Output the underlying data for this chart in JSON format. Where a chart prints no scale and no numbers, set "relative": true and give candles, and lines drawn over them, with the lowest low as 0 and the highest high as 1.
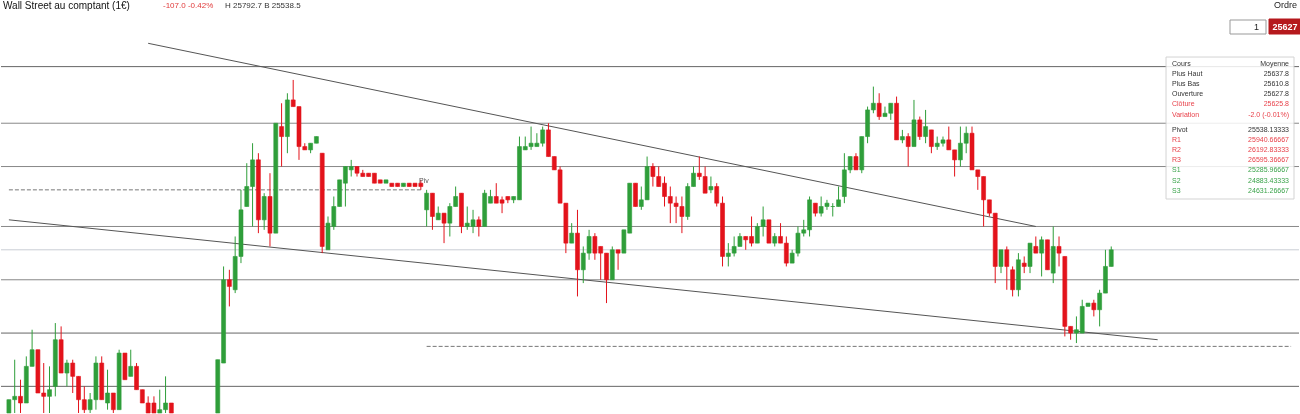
{
  "chart_data": {
    "type": "candlestick",
    "relative": true,
    "title": "Wall Street au comptant (1€)",
    "subtitle": "-107.0  -0.42%",
    "annotations": [
      "Piv",
      "H 25792.7  B 25538.5",
      "Ordre",
      "1",
      "25627",
      "Cours",
      "Moyenne",
      "Plus Haut",
      "25637.8",
      "Plus Bas",
      "25610.8",
      "Ouverture",
      "25627.8",
      "Clôture",
      "25625.8",
      "Variation",
      "-2.0 (-0.01%)",
      "Pivot",
      "25538.13333",
      "R1",
      "25940.66667",
      "R2",
      "26192.83333",
      "R3",
      "26595.36667",
      "S1",
      "25285.96667",
      "S2",
      "24883.43333",
      "S3",
      "24631.26667"
    ],
    "categories": [
      null,
      null,
      null,
      null,
      null,
      null,
      null,
      null,
      null,
      null,
      null,
      null,
      null,
      null,
      null,
      null,
      null,
      null,
      null,
      null,
      null,
      null,
      null,
      null,
      null,
      null,
      null,
      null,
      null,
      null,
      null,
      null,
      null,
      null,
      null,
      null,
      null,
      null,
      null,
      null,
      null,
      null,
      null,
      null,
      null,
      null,
      null,
      null,
      null,
      null,
      null,
      null,
      null,
      null,
      null,
      null,
      null,
      null,
      null,
      null,
      null,
      null,
      null,
      null,
      null,
      null,
      null,
      null,
      null,
      null,
      null,
      null,
      null,
      null,
      null,
      null,
      null,
      null,
      null,
      null,
      null,
      null,
      null,
      null,
      null,
      null,
      null,
      null,
      null,
      null,
      null,
      null,
      null,
      null,
      null,
      null,
      null,
      null,
      null,
      null,
      null,
      null,
      null,
      null,
      null,
      null,
      null,
      null,
      null,
      null,
      null,
      null,
      null,
      null,
      null,
      null,
      null,
      null,
      null,
      null,
      null,
      null,
      null,
      null,
      null,
      null,
      null,
      null,
      null,
      null,
      null,
      null,
      null,
      null,
      null,
      null,
      null,
      null,
      null,
      null,
      null,
      null,
      null,
      null,
      null,
      null,
      null,
      null,
      null,
      null,
      null,
      null,
      null,
      null,
      null,
      null,
      null,
      null,
      null,
      null,
      null,
      null,
      null,
      null,
      null,
      null,
      null,
      null,
      null,
      null,
      null,
      null,
      null,
      null,
      null,
      null,
      null,
      null,
      null,
      null,
      null,
      null,
      null,
      null,
      null,
      null,
      null,
      null,
      null,
      null,
      null,
      null,
      null,
      null,
      null,
      null,
      null,
      null,
      null,
      null,
      null,
      null,
      null,
      null,
      null,
      null,
      null,
      null,
      null,
      null,
      null,
      null,
      null,
      null,
      null,
      null,
      null,
      null,
      null,
      null,
      null,
      null
    ],
    "ohlc": [
      [
        0,
        0.04,
        0,
        0.04
      ],
      [
        0.04,
        0.16,
        0,
        0.05
      ],
      [
        0.05,
        0.1,
        0,
        0.03
      ],
      [
        0.03,
        0.17,
        0.03,
        0.14
      ],
      [
        0.14,
        0.25,
        0.14,
        0.19
      ],
      [
        0.19,
        0.19,
        0.06,
        0.06
      ],
      [
        0.06,
        0.15,
        0,
        0.05
      ],
      [
        0.05,
        0.14,
        0,
        0.07
      ],
      [
        0.08,
        0.27,
        0.05,
        0.22
      ],
      [
        0.22,
        0.26,
        0.12,
        0.12
      ],
      [
        0.12,
        0.16,
        0.08,
        0.15
      ],
      [
        0.15,
        0.16,
        0.06,
        0.11
      ],
      [
        0.11,
        0.11,
        0,
        0.04
      ],
      [
        0.04,
        0.08,
        0,
        0.01
      ],
      [
        0.01,
        0.06,
        0,
        0.04
      ],
      [
        0.04,
        0.17,
        0.01,
        0.15
      ],
      [
        0.15,
        0.17,
        0.04,
        0.04
      ],
      [
        0.03,
        0.13,
        0.01,
        0.06
      ],
      [
        0.06,
        0.06,
        0,
        0.01
      ],
      [
        0.01,
        0.19,
        0.01,
        0.18
      ],
      [
        0.18,
        0.18,
        0.1,
        0.1
      ],
      [
        0.11,
        0.19,
        0.11,
        0.14
      ],
      [
        0.14,
        0.15,
        0.07,
        0.07
      ],
      [
        0.07,
        0.07,
        0.03,
        0.03
      ],
      [
        0.03,
        0.05,
        0,
        0
      ],
      [
        0.03,
        0.05,
        0,
        0
      ],
      [
        0,
        0.07,
        0,
        0.01
      ],
      [
        0.01,
        0.11,
        0,
        0.03
      ],
      [
        0.03,
        0.03,
        0,
        0
      ],
      null,
      null,
      null,
      null,
      null,
      null,
      null,
      [
        0,
        0.16,
        0,
        0.16
      ],
      [
        0.15,
        0.44,
        0.15,
        0.4
      ],
      [
        0.4,
        0.43,
        0.32,
        0.38
      ],
      [
        0.37,
        0.53,
        0.36,
        0.47
      ],
      [
        0.47,
        0.67,
        0.45,
        0.61
      ],
      [
        0.62,
        0.75,
        0.62,
        0.68
      ],
      [
        0.68,
        0.81,
        0.56,
        0.76
      ],
      [
        0.76,
        0.78,
        0.54,
        0.58
      ],
      [
        0.58,
        0.66,
        0.55,
        0.65
      ],
      [
        0.65,
        0.72,
        0.5,
        0.54
      ],
      [
        0.54,
        0.87,
        0.54,
        0.87
      ],
      [
        0.86,
        0.93,
        0.74,
        0.83
      ],
      [
        0.83,
        0.96,
        0.78,
        0.94
      ],
      [
        0.94,
        1,
        0.92,
        0.92
      ],
      [
        0.92,
        0.92,
        0.76,
        0.8
      ],
      [
        0.8,
        0.81,
        0.79,
        0.79
      ],
      [
        0.79,
        0.81,
        0.78,
        0.81
      ],
      [
        0.81,
        0.83,
        0.81,
        0.83
      ],
      [
        0.78,
        0.78,
        0.48,
        0.5
      ],
      [
        0.49,
        0.59,
        0.49,
        0.57
      ],
      [
        0.56,
        0.65,
        0.55,
        0.62
      ],
      [
        0.62,
        0.7,
        0.62,
        0.7
      ],
      [
        0.69,
        0.74,
        0.62,
        0.74
      ],
      [
        0.73,
        0.76,
        0.71,
        0.74
      ],
      [
        0.74,
        0.74,
        0.71,
        0.72
      ],
      [
        0.72,
        0.73,
        0.71,
        0.71
      ],
      [
        0.72,
        0.72,
        0.71,
        0.71
      ],
      [
        0.72,
        0.72,
        0.69,
        0.69
      ],
      [
        0.7,
        0.7,
        0.69,
        0.69
      ],
      [
        0.69,
        0.7,
        0.69,
        0.7
      ],
      [
        0.69,
        0.69,
        0.68,
        0.68
      ],
      [
        0.69,
        0.69,
        0.68,
        0.68
      ],
      [
        0.68,
        0.69,
        0.68,
        0.69
      ],
      [
        0.69,
        0.69,
        0.68,
        0.68
      ],
      [
        0.69,
        0.69,
        0.68,
        0.68
      ],
      [
        0.69,
        0.7,
        0.67,
        0.68
      ],
      [
        0.61,
        0.67,
        0.56,
        0.66
      ],
      [
        0.66,
        0.66,
        0.55,
        0.59
      ],
      [
        0.58,
        0.62,
        0.58,
        0.6
      ],
      [
        0.6,
        0.6,
        0.51,
        0.57
      ],
      [
        0.57,
        0.63,
        0.53,
        0.62
      ],
      [
        0.62,
        0.68,
        0.62,
        0.65
      ],
      [
        0.66,
        0.66,
        0.54,
        0.56
      ],
      [
        0.56,
        0.62,
        0.55,
        0.57
      ],
      [
        0.56,
        0.61,
        0.54,
        0.58
      ],
      [
        0.58,
        0.59,
        0.53,
        0.56
      ],
      [
        0.56,
        0.67,
        0.56,
        0.66
      ],
      [
        0.63,
        0.67,
        0.63,
        0.65
      ],
      [
        0.65,
        0.69,
        0.63,
        0.63
      ],
      [
        0.64,
        0.65,
        0.6,
        0.63
      ],
      [
        0.65,
        0.65,
        0.63,
        0.64
      ],
      [
        0.64,
        0.65,
        0.63,
        0.65
      ],
      [
        0.64,
        0.83,
        0.64,
        0.8
      ],
      [
        0.79,
        0.83,
        0.79,
        0.8
      ],
      [
        0.8,
        0.86,
        0.79,
        0.81
      ],
      [
        0.8,
        0.84,
        0.8,
        0.81
      ],
      [
        0.81,
        0.86,
        0.8,
        0.85
      ],
      [
        0.85,
        0.87,
        0.77,
        0.77
      ],
      [
        0.77,
        0.77,
        0.73,
        0.73
      ],
      [
        0.73,
        0.74,
        0.63,
        0.63
      ],
      [
        0.63,
        0.63,
        0.48,
        0.51
      ],
      [
        0.51,
        0.57,
        0.51,
        0.54
      ],
      [
        0.54,
        0.61,
        0.35,
        0.43
      ],
      [
        0.43,
        0.5,
        0.39,
        0.48
      ],
      [
        0.48,
        0.55,
        0.46,
        0.53
      ],
      [
        0.53,
        0.54,
        0.46,
        0.48
      ],
      [
        0.5,
        0.5,
        0.4,
        0.48
      ],
      [
        0.48,
        0.48,
        0.33,
        0.4
      ],
      [
        0.4,
        0.5,
        0.4,
        0.49
      ],
      [
        0.49,
        0.49,
        0.43,
        0.48
      ],
      [
        0.48,
        0.55,
        0.48,
        0.55
      ],
      [
        0.54,
        0.69,
        0.54,
        0.69
      ],
      [
        0.69,
        0.69,
        0.62,
        0.62
      ],
      [
        0.62,
        0.68,
        0.61,
        0.64
      ],
      [
        0.64,
        0.77,
        0.64,
        0.74
      ],
      [
        0.74,
        0.75,
        0.68,
        0.71
      ],
      [
        0.71,
        0.74,
        0.68,
        0.68
      ],
      [
        0.69,
        0.71,
        0.62,
        0.65
      ],
      [
        0.65,
        0.68,
        0.57,
        0.63
      ],
      [
        0.63,
        0.65,
        0.57,
        0.62
      ],
      [
        0.62,
        0.65,
        0.54,
        0.59
      ],
      [
        0.59,
        0.69,
        0.58,
        0.68
      ],
      [
        0.68,
        0.74,
        0.68,
        0.72
      ],
      [
        0.72,
        0.77,
        0.7,
        0.71
      ],
      [
        0.71,
        0.74,
        0.66,
        0.66
      ],
      [
        0.67,
        0.71,
        0.66,
        0.68
      ],
      [
        0.68,
        0.69,
        0.62,
        0.63
      ],
      [
        0.63,
        0.65,
        0.44,
        0.47
      ],
      [
        0.47,
        0.51,
        0.44,
        0.48
      ],
      [
        0.48,
        0.53,
        0.47,
        0.5
      ],
      [
        0.5,
        0.54,
        0.5,
        0.53
      ],
      [
        0.53,
        0.53,
        0.49,
        0.52
      ],
      [
        0.53,
        0.59,
        0.5,
        0.51
      ],
      [
        0.51,
        0.57,
        0.51,
        0.56
      ],
      [
        0.56,
        0.62,
        0.53,
        0.58
      ],
      [
        0.58,
        0.58,
        0.51,
        0.51
      ],
      [
        0.51,
        0.54,
        0.5,
        0.53
      ],
      [
        0.53,
        0.57,
        0.51,
        0.51
      ],
      [
        0.51,
        0.53,
        0.44,
        0.45
      ],
      [
        0.45,
        0.49,
        0.45,
        0.48
      ],
      [
        0.48,
        0.56,
        0.47,
        0.54
      ],
      [
        0.54,
        0.58,
        0.53,
        0.55
      ],
      [
        0.55,
        0.65,
        0.53,
        0.64
      ],
      [
        0.63,
        0.63,
        0.59,
        0.6
      ],
      [
        0.6,
        0.65,
        0.59,
        0.62
      ],
      [
        0.62,
        0.64,
        0.61,
        0.63
      ],
      [
        0.62,
        0.63,
        0.59,
        0.62
      ],
      [
        0.62,
        0.68,
        0.62,
        0.64
      ],
      [
        0.65,
        0.78,
        0.63,
        0.73
      ],
      [
        0.73,
        0.77,
        0.72,
        0.77
      ],
      [
        0.77,
        0.78,
        0.73,
        0.73
      ],
      [
        0.73,
        0.83,
        0.72,
        0.83
      ],
      [
        0.83,
        0.92,
        0.81,
        0.91
      ],
      [
        0.91,
        0.98,
        0.9,
        0.93
      ],
      [
        0.93,
        0.96,
        0.88,
        0.89
      ],
      [
        0.89,
        0.92,
        0.89,
        0.9
      ],
      [
        0.9,
        0.93,
        0.88,
        0.93
      ],
      [
        0.93,
        0.95,
        0.82,
        0.82
      ],
      [
        0.82,
        0.85,
        0.81,
        0.83
      ],
      [
        0.83,
        0.84,
        0.74,
        0.8
      ],
      [
        0.8,
        0.94,
        0.8,
        0.88
      ],
      [
        0.88,
        0.89,
        0.82,
        0.83
      ],
      [
        0.83,
        0.91,
        0.81,
        0.86
      ],
      [
        0.85,
        0.85,
        0.78,
        0.8
      ],
      [
        0.8,
        0.83,
        0.79,
        0.81
      ],
      [
        0.81,
        0.83,
        0.8,
        0.82
      ],
      [
        0.82,
        0.86,
        0.79,
        0.79
      ],
      [
        0.79,
        0.79,
        0.71,
        0.76
      ],
      [
        0.76,
        0.86,
        0.74,
        0.81
      ],
      [
        0.81,
        0.86,
        0.78,
        0.84
      ],
      [
        0.84,
        0.86,
        0.73,
        0.73
      ],
      [
        0.73,
        0.73,
        0.67,
        0.71
      ],
      [
        0.71,
        0.71,
        0.56,
        0.64
      ],
      [
        0.64,
        0.64,
        0.59,
        0.6
      ],
      [
        0.6,
        0.6,
        0.39,
        0.44
      ],
      [
        0.44,
        0.49,
        0.42,
        0.49
      ],
      [
        0.49,
        0.5,
        0.37,
        0.44
      ],
      [
        0.43,
        0.44,
        0.35,
        0.37
      ],
      [
        0.37,
        0.48,
        0.35,
        0.46
      ],
      [
        0.45,
        0.47,
        0.42,
        0.44
      ],
      [
        0.44,
        0.51,
        0.42,
        0.51
      ],
      [
        0.5,
        0.53,
        0.48,
        0.48
      ],
      [
        0.48,
        0.53,
        0.41,
        0.52
      ],
      [
        0.52,
        0.52,
        0.43,
        0.43
      ],
      [
        0.42,
        0.56,
        0.39,
        0.5
      ],
      [
        0.5,
        0.53,
        0.44,
        0.48
      ],
      [
        0.47,
        0.47,
        0.23,
        0.26
      ],
      [
        0.26,
        0.26,
        0.22,
        0.24
      ],
      [
        0.24,
        0.29,
        0.21,
        0.25
      ],
      [
        0.24,
        0.34,
        0.24,
        0.32
      ],
      [
        0.32,
        0.33,
        0.32,
        0.33
      ],
      [
        0.33,
        0.34,
        0.29,
        0.31
      ],
      [
        0.31,
        0.37,
        0.26,
        0.36
      ],
      [
        0.36,
        0.49,
        0.36,
        0.44
      ],
      [
        0.44,
        0.5,
        0.44,
        0.49
      ],
      null,
      null,
      null,
      null,
      null,
      null,
      null,
      null,
      null,
      null,
      null,
      null,
      null,
      null,
      null,
      null,
      null,
      null,
      null,
      null,
      null,
      null,
      null,
      null,
      null,
      null,
      null,
      null,
      null,
      null,
      null
    ],
    "series": [
      {
        "type": "line",
        "color": "#555555",
        "line_style": "solid",
        "values": [
          null,
          null,
          null,
          null,
          null,
          null,
          null,
          null,
          null,
          null,
          null,
          null,
          null,
          null,
          null,
          null,
          null,
          null,
          null,
          null,
          null,
          null,
          null,
          null,
          1.11,
          null,
          null,
          null,
          null,
          null,
          null,
          null,
          null,
          null,
          null,
          null,
          null,
          null,
          null,
          null,
          null,
          null,
          null,
          null,
          null,
          null,
          null,
          null,
          null,
          null,
          null,
          null,
          null,
          null,
          null,
          null,
          null,
          null,
          null,
          null,
          null,
          null,
          null,
          null,
          null,
          null,
          null,
          null,
          null,
          null,
          null,
          null,
          null,
          null,
          null,
          null,
          null,
          null,
          null,
          null,
          null,
          null,
          null,
          null,
          null,
          null,
          null,
          null,
          null,
          null,
          null,
          null,
          null,
          null,
          null,
          null,
          null,
          null,
          null,
          null,
          null,
          null,
          null,
          null,
          null,
          null,
          null,
          null,
          null,
          null,
          null,
          null,
          null,
          null,
          null,
          null,
          null,
          null,
          null,
          null,
          null,
          null,
          null,
          null,
          null,
          null,
          null,
          null,
          null,
          null,
          null,
          null,
          null,
          null,
          null,
          null,
          null,
          null,
          null,
          null,
          null,
          null,
          null,
          null,
          null,
          null,
          null,
          null,
          null,
          null,
          null,
          null,
          null,
          null,
          null,
          null,
          null,
          null,
          null,
          null,
          null,
          null,
          null,
          null,
          null,
          null,
          null,
          null,
          null,
          null,
          null,
          null,
          null,
          null,
          null,
          null,
          null,
          0.56,
          null,
          null,
          null,
          null,
          null,
          null,
          null,
          null,
          null,
          null,
          null,
          null,
          null,
          null,
          null,
          null,
          null,
          null,
          null,
          null,
          null,
          null,
          null,
          null,
          null,
          null,
          null,
          null,
          null,
          null,
          null,
          null,
          null,
          null,
          null,
          null,
          null,
          null,
          null,
          null,
          null,
          null,
          null,
          null
        ]
      },
      {
        "type": "line",
        "color": "#555555",
        "line_style": "solid",
        "values": [
          0.58,
          null,
          null,
          null,
          null,
          null,
          null,
          null,
          null,
          null,
          null,
          null,
          null,
          null,
          null,
          null,
          null,
          null,
          null,
          null,
          null,
          null,
          null,
          null,
          null,
          null,
          null,
          null,
          null,
          null,
          null,
          null,
          null,
          null,
          null,
          null,
          null,
          null,
          null,
          null,
          null,
          null,
          null,
          null,
          null,
          null,
          null,
          null,
          null,
          null,
          null,
          null,
          null,
          null,
          null,
          null,
          null,
          null,
          null,
          null,
          null,
          null,
          null,
          null,
          null,
          null,
          null,
          null,
          null,
          null,
          null,
          null,
          null,
          null,
          null,
          null,
          null,
          null,
          null,
          null,
          null,
          null,
          null,
          null,
          null,
          null,
          null,
          null,
          null,
          null,
          null,
          null,
          null,
          null,
          null,
          null,
          null,
          null,
          null,
          null,
          null,
          null,
          null,
          null,
          null,
          null,
          null,
          null,
          null,
          null,
          null,
          null,
          null,
          null,
          null,
          null,
          null,
          null,
          null,
          null,
          null,
          null,
          null,
          null,
          null,
          null,
          null,
          null,
          null,
          null,
          null,
          null,
          null,
          null,
          null,
          null,
          null,
          null,
          null,
          null,
          null,
          null,
          null,
          null,
          null,
          null,
          null,
          null,
          null,
          null,
          null,
          null,
          null,
          null,
          null,
          null,
          null,
          null,
          null,
          null,
          null,
          null,
          null,
          null,
          null,
          null,
          null,
          null,
          null,
          null,
          null,
          null,
          null,
          null,
          null,
          null,
          null,
          null,
          null,
          null,
          null,
          null,
          null,
          null,
          null,
          null,
          null,
          null,
          null,
          null,
          null,
          null,
          null,
          null,
          null,
          null,
          null,
          null,
          0.22,
          null,
          null,
          null,
          null,
          null,
          null,
          null,
          null,
          null,
          null,
          null,
          null,
          null,
          null,
          null,
          null,
          null,
          null,
          null,
          null,
          null,
          null,
          null
        ]
      },
      {
        "type": "line",
        "color": "#777777",
        "line_style": "dashed",
        "values": [
          0.67,
          null,
          null,
          null,
          null,
          null,
          null,
          null,
          null,
          null,
          null,
          null,
          null,
          null,
          null,
          null,
          null,
          null,
          null,
          null,
          null,
          null,
          null,
          null,
          null,
          null,
          null,
          null,
          null,
          null,
          null,
          null,
          null,
          null,
          null,
          null,
          null,
          null,
          null,
          null,
          null,
          null,
          null,
          null,
          null,
          null,
          null,
          null,
          null,
          null,
          null,
          null,
          null,
          null,
          null,
          null,
          null,
          null,
          null,
          null,
          null,
          null,
          null,
          null,
          null,
          null,
          null,
          null,
          null,
          null,
          null,
          0.67,
          null,
          null,
          null,
          null,
          null,
          null,
          null,
          null,
          null,
          null,
          null,
          null,
          null,
          null,
          null,
          null,
          null,
          null,
          null,
          null,
          null,
          null,
          null,
          null,
          null,
          null,
          null,
          null,
          null,
          null,
          null,
          null,
          null,
          null,
          null,
          null,
          null,
          null,
          null,
          null,
          null,
          null,
          null,
          null,
          null,
          null,
          null,
          null,
          null,
          null,
          null,
          null,
          null,
          null,
          null,
          null,
          null,
          null,
          null,
          null,
          null,
          null,
          null,
          null,
          null,
          null,
          null,
          null,
          null,
          null,
          null,
          null,
          null,
          null,
          null,
          null,
          null,
          null,
          null,
          null,
          null,
          null,
          null,
          null,
          null,
          null,
          null,
          null,
          null,
          null,
          null,
          null,
          null,
          null,
          null,
          null,
          null,
          null,
          null,
          null,
          null,
          null,
          null,
          null,
          null,
          null,
          null,
          null,
          null,
          null,
          null,
          null,
          null,
          null,
          null,
          null,
          null,
          null,
          null,
          null,
          null,
          null,
          null,
          null,
          null,
          null,
          null,
          null,
          null,
          null,
          null,
          null,
          null,
          null,
          null,
          null,
          null,
          null,
          null,
          null,
          null,
          null,
          null,
          null,
          null,
          null,
          null,
          null,
          null,
          null
        ]
      },
      {
        "type": "line",
        "color": "#777777",
        "line_style": "dashed",
        "values": [
          null,
          null,
          null,
          null,
          null,
          null,
          null,
          null,
          null,
          null,
          null,
          null,
          null,
          null,
          null,
          null,
          null,
          null,
          null,
          null,
          null,
          null,
          null,
          null,
          null,
          null,
          null,
          null,
          null,
          null,
          null,
          null,
          null,
          null,
          null,
          null,
          null,
          null,
          null,
          null,
          null,
          null,
          null,
          null,
          null,
          null,
          null,
          null,
          null,
          null,
          null,
          null,
          null,
          null,
          null,
          null,
          null,
          null,
          null,
          null,
          null,
          null,
          null,
          null,
          null,
          null,
          null,
          null,
          null,
          null,
          null,
          null,
          0.2,
          null,
          null,
          null,
          null,
          null,
          null,
          null,
          null,
          null,
          null,
          null,
          null,
          null,
          null,
          null,
          null,
          null,
          null,
          null,
          null,
          null,
          null,
          null,
          null,
          null,
          null,
          null,
          null,
          null,
          null,
          null,
          null,
          null,
          null,
          null,
          null,
          null,
          null,
          null,
          null,
          null,
          null,
          null,
          null,
          null,
          null,
          null,
          null,
          null,
          null,
          null,
          null,
          null,
          null,
          null,
          null,
          null,
          null,
          null,
          null,
          null,
          null,
          null,
          null,
          null,
          null,
          null,
          null,
          null,
          null,
          null,
          null,
          null,
          null,
          null,
          null,
          null,
          null,
          null,
          null,
          null,
          null,
          null,
          null,
          null,
          null,
          null,
          null,
          null,
          null,
          null,
          null,
          null,
          null,
          null,
          null,
          null,
          null,
          null,
          null,
          null,
          null,
          null,
          null,
          null,
          null,
          null,
          null,
          null,
          null,
          null,
          null,
          null,
          null,
          null,
          null,
          null,
          null,
          null,
          null,
          null,
          null,
          null,
          null,
          null,
          null,
          null,
          null,
          null,
          null,
          null,
          null,
          null,
          null,
          null,
          null,
          null,
          null,
          null,
          null,
          null,
          null,
          null,
          null,
          null,
          null,
          null,
          null,
          0.2
        ]
      }
    ],
    "ref_lines": [
      {
        "axis": "y",
        "value": 1.04,
        "color": "#666666"
      },
      {
        "axis": "y",
        "value": 0.87,
        "color": "#888888"
      },
      {
        "axis": "y",
        "value": 0.74,
        "color": "#888888"
      },
      {
        "axis": "y",
        "value": 0.56,
        "color": "#888888"
      },
      {
        "axis": "y",
        "value": 0.49,
        "color": "#c9cdd4"
      },
      {
        "axis": "y",
        "value": 0.4,
        "color": "#888888"
      },
      {
        "axis": "y",
        "value": 0.24,
        "color": "#666666"
      },
      {
        "axis": "y",
        "value": 0.08,
        "color": "#666666"
      }
    ]
  }
}
